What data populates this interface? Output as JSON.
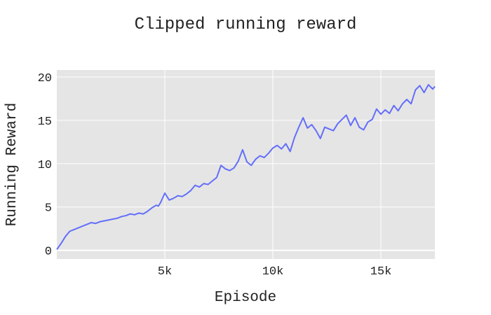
{
  "chart_data": {
    "type": "line",
    "title": "Clipped running reward",
    "xlabel": "Episode",
    "ylabel": "Running Reward",
    "xlim": [
      0,
      17500
    ],
    "ylim": [
      -1,
      20.8
    ],
    "x_ticks": [
      5000,
      10000,
      15000
    ],
    "x_tick_labels": [
      "5k",
      "10k",
      "15k"
    ],
    "y_ticks": [
      0,
      5,
      10,
      15,
      20
    ],
    "y_tick_labels": [
      "0",
      "5",
      "10",
      "15",
      "20"
    ],
    "grid": true,
    "colors": {
      "plot_bg": "#e5e5e5",
      "grid": "#ffffff",
      "line": "#636efa"
    },
    "series": [
      {
        "x": [
          0,
          200,
          400,
          600,
          800,
          1000,
          1200,
          1400,
          1600,
          1800,
          2000,
          2200,
          2400,
          2600,
          2800,
          3000,
          3200,
          3400,
          3600,
          3800,
          4000,
          4200,
          4400,
          4600,
          4700,
          4800,
          5000,
          5200,
          5400,
          5600,
          5800,
          6000,
          6200,
          6400,
          6600,
          6800,
          7000,
          7200,
          7400,
          7600,
          7800,
          8000,
          8200,
          8400,
          8600,
          8800,
          9000,
          9200,
          9400,
          9600,
          9800,
          10000,
          10200,
          10400,
          10600,
          10800,
          11000,
          11200,
          11400,
          11600,
          11800,
          12000,
          12200,
          12400,
          12600,
          12800,
          13000,
          13200,
          13400,
          13600,
          13800,
          14000,
          14200,
          14400,
          14600,
          14800,
          15000,
          15200,
          15400,
          15600,
          15800,
          16000,
          16200,
          16400,
          16600,
          16800,
          17000,
          17200,
          17400,
          17500
        ],
        "y": [
          0.1,
          0.8,
          1.6,
          2.2,
          2.4,
          2.6,
          2.8,
          3.0,
          3.2,
          3.1,
          3.3,
          3.4,
          3.5,
          3.6,
          3.7,
          3.9,
          4.0,
          4.2,
          4.1,
          4.3,
          4.2,
          4.5,
          4.9,
          5.2,
          5.1,
          5.5,
          6.6,
          5.8,
          6.0,
          6.3,
          6.2,
          6.5,
          6.9,
          7.5,
          7.3,
          7.7,
          7.6,
          8.0,
          8.4,
          9.8,
          9.4,
          9.2,
          9.5,
          10.3,
          11.6,
          10.2,
          9.8,
          10.5,
          10.9,
          10.7,
          11.2,
          11.8,
          12.1,
          11.7,
          12.3,
          11.4,
          13.0,
          14.2,
          15.3,
          14.1,
          14.5,
          13.8,
          12.9,
          14.2,
          14.0,
          13.8,
          14.6,
          15.1,
          15.6,
          14.4,
          15.3,
          14.2,
          13.9,
          14.8,
          15.1,
          16.3,
          15.7,
          16.2,
          15.8,
          16.7,
          16.1,
          16.9,
          17.4,
          16.9,
          18.5,
          19.0,
          18.2,
          19.1,
          18.6,
          18.9
        ]
      }
    ]
  }
}
